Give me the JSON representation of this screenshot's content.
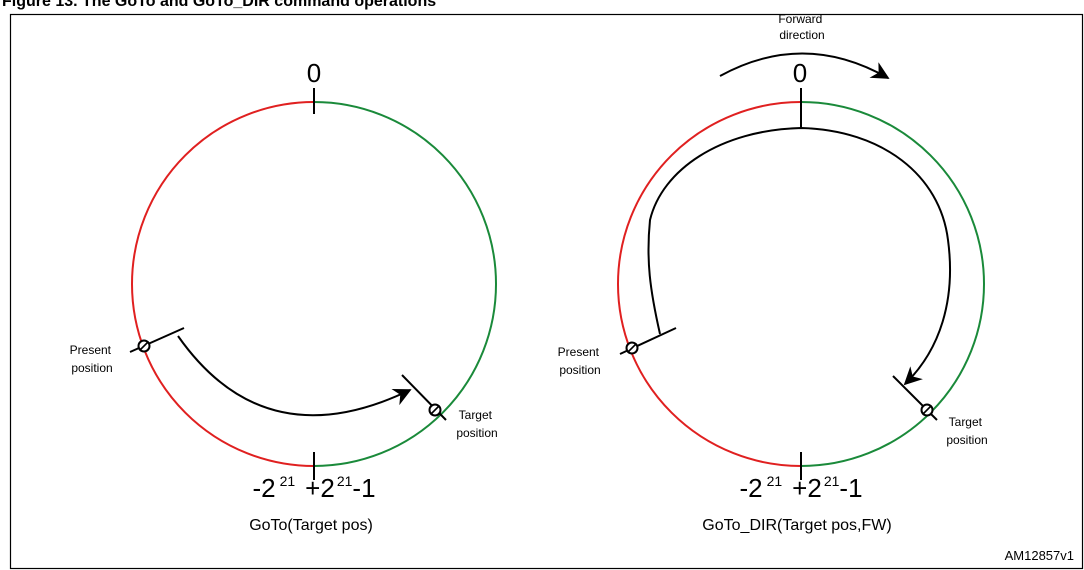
{
  "figure": {
    "header_fragment": "Fi",
    "header_clipped": "gure 13. The GoTo and GoTo_DIR command operations",
    "id_label": "AM12857v1"
  },
  "left_diagram": {
    "zero_label": "0",
    "bottom_neg_base": "-2",
    "bottom_neg_exp": "21",
    "bottom_pos_base": "+2",
    "bottom_pos_exp": "21",
    "bottom_pos_tail": "-1",
    "present_label_line1": "Present",
    "present_label_line2": "position",
    "target_label_line1": "Target",
    "target_label_line2": "position",
    "caption": "GoTo(Target pos)"
  },
  "right_diagram": {
    "zero_label": "0",
    "forward_label_line1": "Forward",
    "forward_label_line2": "direction",
    "bottom_neg_base": "-2",
    "bottom_neg_exp": "21",
    "bottom_pos_base": "+2",
    "bottom_pos_exp": "21",
    "bottom_pos_tail": "-1",
    "present_label_line1": "Present",
    "present_label_line2": "position",
    "target_label_line1": "Target",
    "target_label_line2": "position",
    "caption": "GoTo_DIR(Target pos,FW)"
  },
  "colors": {
    "negative_half": "#e02020",
    "positive_half": "#1a8a3a",
    "stroke": "#000000"
  }
}
